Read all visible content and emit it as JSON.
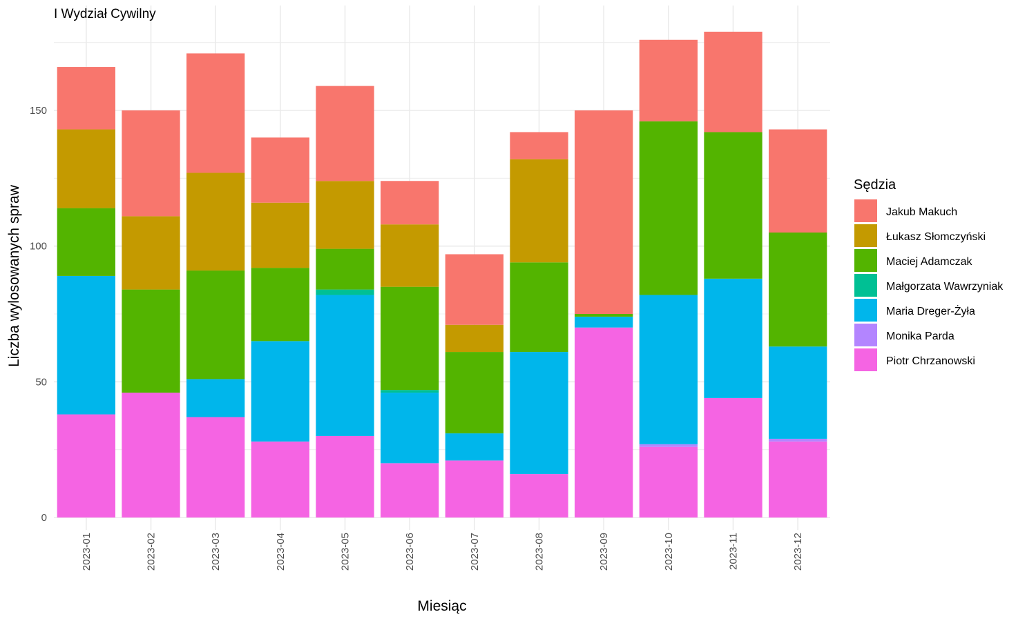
{
  "chart_data": {
    "type": "bar",
    "stacked": true,
    "title": "I Wydział Cywilny",
    "xlabel": "Miesiąc",
    "ylabel": "Liczba wylosowanych spraw",
    "ylim": [
      0,
      182
    ],
    "yticks": [
      0,
      50,
      100,
      150
    ],
    "grid": true,
    "legend_position": "right",
    "legend_title": "Sędzia",
    "categories": [
      "2023-01",
      "2023-02",
      "2023-03",
      "2023-04",
      "2023-05",
      "2023-06",
      "2023-07",
      "2023-08",
      "2023-09",
      "2023-10",
      "2023-11",
      "2023-12"
    ],
    "series": [
      {
        "name": "Piotr Chrzanowski",
        "color": "#F564E3",
        "values": [
          38,
          46,
          37,
          28,
          30,
          20,
          21,
          16,
          70,
          26,
          44,
          28
        ]
      },
      {
        "name": "Monika Parda",
        "color": "#B385FF",
        "values": [
          0,
          0,
          0,
          0,
          0,
          0,
          0,
          0,
          0,
          1,
          0,
          1
        ]
      },
      {
        "name": "Maria Dreger-Żyła",
        "color": "#00B6EB",
        "values": [
          51,
          0,
          14,
          37,
          52,
          26,
          10,
          45,
          4,
          55,
          44,
          34
        ]
      },
      {
        "name": "Małgorzata Wawrzyniak",
        "color": "#00C094",
        "values": [
          0,
          0,
          0,
          0,
          2,
          1,
          0,
          0,
          0,
          0,
          0,
          0
        ]
      },
      {
        "name": "Maciej Adamczak",
        "color": "#53B400",
        "values": [
          25,
          38,
          40,
          27,
          15,
          38,
          30,
          33,
          1,
          64,
          54,
          42
        ]
      },
      {
        "name": "Łukasz Słomczyński",
        "color": "#C49A00",
        "values": [
          29,
          27,
          36,
          24,
          25,
          23,
          10,
          38,
          0,
          0,
          0,
          0
        ]
      },
      {
        "name": "Jakub Makuch",
        "color": "#F8766D",
        "values": [
          23,
          39,
          44,
          24,
          35,
          16,
          26,
          10,
          75,
          30,
          37,
          38
        ]
      }
    ],
    "legend_order": [
      "Jakub Makuch",
      "Łukasz Słomczyński",
      "Maciej Adamczak",
      "Małgorzata Wawrzyniak",
      "Maria Dreger-Żyła",
      "Monika Parda",
      "Piotr Chrzanowski"
    ]
  }
}
